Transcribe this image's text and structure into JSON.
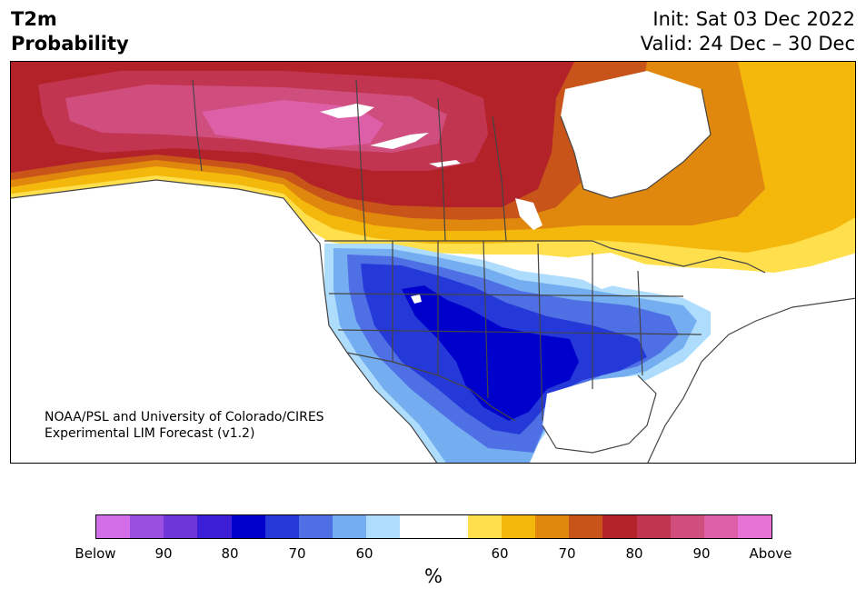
{
  "title": {
    "left_line1": "T2m",
    "left_line2": "Probability",
    "init": "Init: Sat 03 Dec 2022",
    "valid": "Valid: 24 Dec – 30 Dec"
  },
  "credit": {
    "line1": "NOAA/PSL and University of Colorado/CIRES",
    "line2": "Experimental LIM Forecast (v1.2)"
  },
  "colorbar": {
    "unit": "%",
    "colors": [
      "#d36ee8",
      "#9a4fe0",
      "#6e35d8",
      "#3c1ed6",
      "#0000cc",
      "#2538d8",
      "#4f70e4",
      "#74aef0",
      "#aedcfc",
      "#ffffff",
      "#ffffff",
      "#ffe04c",
      "#f4b80c",
      "#e0870e",
      "#c8541a",
      "#b22228",
      "#c23550",
      "#d04e7e",
      "#dc5fa8",
      "#e873d6"
    ],
    "ticks": [
      "Below",
      "90",
      "80",
      "70",
      "60",
      "60",
      "70",
      "80",
      "90",
      "Above"
    ]
  },
  "map": {
    "region": "North America",
    "colors": {
      "above_95": "#e873d6",
      "above_90": "#dc5fa8",
      "above_85": "#d04e7e",
      "above_80": "#c23550",
      "above_75": "#b22228",
      "above_70": "#c8541a",
      "above_65": "#e0870e",
      "above_60": "#f4b80c",
      "above_55": "#ffe04c",
      "below_55": "#aedcfc",
      "below_60": "#74aef0",
      "below_65": "#4f70e4",
      "below_70": "#2538d8",
      "below_75": "#0000cc",
      "land_outline": "#444444"
    }
  }
}
